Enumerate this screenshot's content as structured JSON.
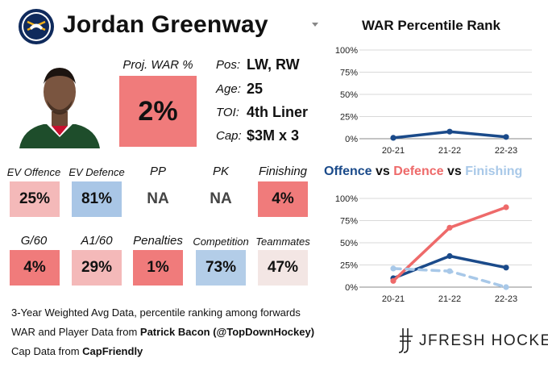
{
  "header": {
    "player_name": "Jordan Greenway",
    "team_logo_icon": "sabres-logo-icon",
    "dropdown_icon": "chevron-down-icon"
  },
  "projection": {
    "label": "Proj. WAR %",
    "value": "2%",
    "color": "#f07b7b"
  },
  "info": [
    {
      "label": "Pos:",
      "value": "LW, RW"
    },
    {
      "label": "Age:",
      "value": "25"
    },
    {
      "label": "TOI:",
      "value": "4th Liner"
    },
    {
      "label": "Cap:",
      "value": "$3M x 3"
    }
  ],
  "stats_row1": [
    {
      "label": "EV Offence",
      "value": "25%",
      "color": "#f4b9b9"
    },
    {
      "label": "EV Defence",
      "value": "81%",
      "color": "#a9c6e6"
    },
    {
      "label": "PP",
      "value": "NA",
      "color": ""
    },
    {
      "label": "PK",
      "value": "NA",
      "color": ""
    },
    {
      "label": "Finishing",
      "value": "4%",
      "color": "#f07b7b"
    }
  ],
  "stats_row2": [
    {
      "label": "G/60",
      "value": "4%",
      "color": "#f07b7b"
    },
    {
      "label": "A1/60",
      "value": "29%",
      "color": "#f4b9b9"
    },
    {
      "label": "Penalties",
      "value": "1%",
      "color": "#f07b7b"
    },
    {
      "label": "Competition",
      "value": "73%",
      "color": "#b3cde8"
    },
    {
      "label": "Teammates",
      "value": "47%",
      "color": "#f3e6e4"
    }
  ],
  "footer": {
    "line1": "3-Year Weighted Avg Data, percentile ranking among forwards",
    "line2_prefix": "WAR and Player Data from ",
    "line2_bold": "Patrick Bacon (@TopDownHockey)",
    "line3_prefix": "Cap Data from ",
    "line3_bold": "CapFriendly",
    "brand": "JFRESH HOCKEY"
  },
  "colors": {
    "offence": "#1a4a8a",
    "defence": "#ee6a6a",
    "finishing": "#a8c8e8",
    "war": "#1a4a8a"
  },
  "chart_data": [
    {
      "type": "line",
      "title": "WAR Percentile Rank",
      "x": [
        "20-21",
        "21-22",
        "22-23"
      ],
      "ylim": [
        0,
        100
      ],
      "yticks": [
        "0%",
        "25%",
        "50%",
        "75%",
        "100%"
      ],
      "series": [
        {
          "values": [
            1,
            8,
            2
          ]
        }
      ]
    },
    {
      "type": "line",
      "title_parts": [
        {
          "text": "Offence",
          "color": "#1a4a8a"
        },
        {
          "text": " vs ",
          "color": "#111111"
        },
        {
          "text": "Defence",
          "color": "#ee6a6a"
        },
        {
          "text": " vs ",
          "color": "#111111"
        },
        {
          "text": "Finishing",
          "color": "#a8c8e8"
        }
      ],
      "x": [
        "20-21",
        "21-22",
        "22-23"
      ],
      "ylim": [
        0,
        100
      ],
      "yticks": [
        "0%",
        "25%",
        "50%",
        "75%",
        "100%"
      ],
      "series": [
        {
          "name": "Offence",
          "values": [
            10,
            35,
            22
          ],
          "color": "#1a4a8a",
          "style": "solid"
        },
        {
          "name": "Defence",
          "values": [
            7,
            67,
            90
          ],
          "color": "#ee6a6a",
          "style": "solid"
        },
        {
          "name": "Finishing",
          "values": [
            21,
            18,
            0
          ],
          "color": "#a8c8e8",
          "style": "dashed"
        }
      ]
    }
  ]
}
